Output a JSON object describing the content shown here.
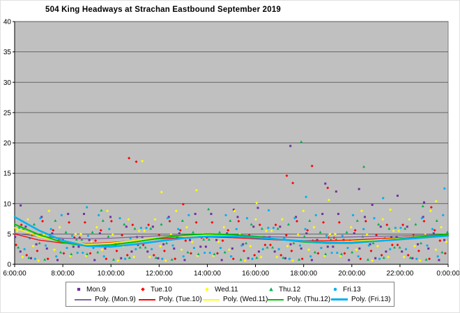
{
  "title": "504 King Headways at Strachan Eastbound September 2019",
  "chart_data": {
    "type": "scatter",
    "title": "504 King Headways at Strachan Eastbound September 2019",
    "xlabel": "",
    "ylabel": "",
    "grid": true,
    "legend_position": "bottom",
    "plot_bg": "#C0C0C0",
    "x_axis": {
      "min": 6,
      "max": 24,
      "tick_hours": [
        6,
        8,
        10,
        12,
        14,
        16,
        18,
        20,
        22,
        24
      ],
      "tick_labels": [
        "6:00:00",
        "8:00:00",
        "10:00:00",
        "12:00:00",
        "14:00:00",
        "16:00:00",
        "18:00:00",
        "20:00:00",
        "22:00:00",
        "0:00:00"
      ]
    },
    "y_axis": {
      "min": 0,
      "max": 40,
      "tick_step": 5,
      "tick_labels": [
        "0",
        "5",
        "10",
        "15",
        "20",
        "25",
        "30",
        "35",
        "40"
      ]
    },
    "series": [
      {
        "name": "Mon.9",
        "color": "#7030A0",
        "marker": "square",
        "x_start": 6.02,
        "x_step": 0.22,
        "values": [
          4.5,
          2.1,
          6.2,
          1.0,
          3.3,
          7.8,
          2.6,
          5.1,
          0.7,
          4.0,
          8.3,
          2.9,
          2.9,
          8.3,
          4.0,
          0.7,
          5.1,
          2.6,
          7.8,
          3.3,
          1.0,
          6.2,
          2.1,
          4.5,
          4.5,
          2.1,
          6.2,
          1.0,
          3.3,
          7.8,
          2.6,
          5.1,
          0.7,
          4.0,
          8.3,
          2.9,
          2.9,
          8.3,
          4.0,
          0.7,
          5.1,
          2.6,
          7.8,
          3.3,
          1.0,
          6.2,
          2.1,
          4.5,
          4.5,
          2.1,
          6.2,
          1.0,
          3.3,
          7.8,
          2.6,
          5.1,
          0.7,
          4.0,
          8.3,
          2.9,
          2.9,
          8.3,
          4.0,
          0.7,
          5.1,
          2.6,
          7.8,
          3.3,
          1.0,
          6.2,
          2.1,
          4.5,
          4.5,
          2.1,
          6.2,
          1.0,
          3.3,
          7.8,
          2.6,
          5.1,
          0.7,
          4.0
        ],
        "outliers": [
          [
            6.25,
            9.7
          ],
          [
            15.1,
            9.0
          ],
          [
            16.1,
            9.3
          ],
          [
            17.45,
            19.5
          ],
          [
            18.9,
            13.3
          ],
          [
            19.35,
            12.0
          ],
          [
            20.3,
            12.4
          ],
          [
            20.85,
            9.8
          ],
          [
            21.9,
            11.3
          ],
          [
            23.0,
            10.2
          ]
        ]
      },
      {
        "name": "Tue.10",
        "color": "#FF0000",
        "marker": "diamond",
        "x_start": 6.06,
        "x_step": 0.22,
        "values": [
          3.2,
          6.5,
          1.5,
          4.8,
          2.2,
          7.1,
          0.9,
          5.6,
          3.9,
          1.8,
          6.9,
          4.4,
          4.4,
          6.9,
          1.8,
          3.9,
          5.6,
          0.9,
          7.1,
          2.2,
          4.8,
          1.5,
          6.5,
          3.2,
          3.2,
          6.5,
          1.5,
          4.8,
          2.2,
          7.1,
          0.9,
          5.6,
          3.9,
          1.8,
          6.9,
          4.4,
          4.4,
          6.9,
          1.8,
          3.9,
          5.6,
          0.9,
          7.1,
          2.2,
          4.8,
          1.5,
          6.5,
          3.2,
          3.2,
          6.5,
          1.5,
          4.8,
          2.2,
          7.1,
          0.9,
          5.6,
          3.9,
          1.8,
          6.9,
          4.4,
          4.4,
          6.9,
          1.8,
          3.9,
          5.6,
          0.9,
          7.1,
          2.2,
          4.8,
          1.5,
          6.5,
          3.2,
          3.2,
          6.5,
          1.5,
          4.8,
          2.2,
          7.1,
          0.9,
          5.6,
          3.9,
          1.8
        ],
        "outliers": [
          [
            10.75,
            17.5
          ],
          [
            11.05,
            16.9
          ],
          [
            13.0,
            9.9
          ],
          [
            17.3,
            14.6
          ],
          [
            17.55,
            13.4
          ],
          [
            18.35,
            16.2
          ],
          [
            19.0,
            12.6
          ],
          [
            23.3,
            9.4
          ]
        ]
      },
      {
        "name": "Wed.11",
        "color": "#FFFF00",
        "marker": "diamond",
        "x_start": 6.11,
        "x_step": 0.22,
        "values": [
          5.5,
          1.2,
          7.4,
          3.0,
          0.6,
          4.9,
          8.8,
          2.4,
          6.1,
          3.7,
          1.4,
          5.0,
          5.0,
          1.4,
          3.7,
          6.1,
          2.4,
          8.8,
          4.9,
          0.6,
          3.0,
          7.4,
          1.2,
          5.5,
          5.5,
          1.2,
          7.4,
          3.0,
          0.6,
          4.9,
          8.8,
          2.4,
          6.1,
          3.7,
          1.4,
          5.0,
          5.0,
          1.4,
          3.7,
          6.1,
          2.4,
          8.8,
          4.9,
          0.6,
          3.0,
          7.4,
          1.2,
          5.5,
          5.5,
          1.2,
          7.4,
          3.0,
          0.6,
          4.9,
          8.8,
          2.4,
          6.1,
          3.7,
          1.4,
          5.0,
          5.0,
          1.4,
          3.7,
          6.1,
          2.4,
          8.8,
          4.9,
          0.6,
          3.0,
          7.4,
          1.2,
          5.5,
          5.5,
          1.2,
          7.4,
          3.0,
          0.6,
          4.9,
          8.8,
          2.4,
          6.1,
          3.7
        ],
        "outliers": [
          [
            11.3,
            17.0
          ],
          [
            12.1,
            11.9
          ],
          [
            13.55,
            12.2
          ],
          [
            16.05,
            10.1
          ],
          [
            19.05,
            10.6
          ],
          [
            21.6,
            9.0
          ],
          [
            23.5,
            10.4
          ]
        ]
      },
      {
        "name": "Thu.12",
        "color": "#00B050",
        "marker": "triangle",
        "x_start": 6.15,
        "x_step": 0.22,
        "values": [
          2.8,
          5.9,
          1.1,
          6.6,
          3.5,
          0.8,
          4.6,
          7.2,
          2.0,
          5.3,
          1.7,
          4.1,
          4.1,
          1.7,
          5.3,
          2.0,
          7.2,
          4.6,
          0.8,
          3.5,
          6.6,
          1.1,
          5.9,
          2.8,
          2.8,
          5.9,
          1.1,
          6.6,
          3.5,
          0.8,
          4.6,
          7.2,
          2.0,
          5.3,
          1.7,
          4.1,
          4.1,
          1.7,
          5.3,
          2.0,
          7.2,
          4.6,
          0.8,
          3.5,
          6.6,
          1.1,
          5.9,
          2.8,
          2.8,
          5.9,
          1.1,
          6.6,
          3.5,
          0.8,
          4.6,
          7.2,
          2.0,
          5.3,
          1.7,
          4.1,
          4.1,
          1.7,
          5.3,
          2.0,
          7.2,
          4.6,
          0.8,
          3.5,
          6.6,
          1.1,
          5.9,
          2.8,
          2.8,
          5.9,
          1.1,
          6.6,
          3.5,
          0.8,
          4.6,
          7.2,
          2.0,
          5.3
        ],
        "outliers": [
          [
            9.6,
            8.9
          ],
          [
            14.05,
            9.1
          ],
          [
            17.9,
            20.2
          ],
          [
            20.5,
            16.1
          ],
          [
            22.95,
            9.6
          ]
        ]
      },
      {
        "name": "Fri.13",
        "color": "#00B0F0",
        "marker": "dot",
        "x_start": 6.19,
        "x_step": 0.22,
        "values": [
          6.0,
          2.5,
          4.3,
          0.9,
          7.6,
          3.1,
          5.8,
          1.3,
          8.1,
          2.7,
          4.7,
          1.9,
          1.9,
          4.7,
          2.7,
          8.1,
          1.3,
          5.8,
          3.1,
          7.6,
          0.9,
          4.3,
          2.5,
          6.0,
          6.0,
          2.5,
          4.3,
          0.9,
          7.6,
          3.1,
          5.8,
          1.3,
          8.1,
          2.7,
          4.7,
          1.9,
          1.9,
          4.7,
          2.7,
          8.1,
          1.3,
          5.8,
          3.1,
          7.6,
          0.9,
          4.3,
          2.5,
          6.0,
          6.0,
          2.5,
          4.3,
          0.9,
          7.6,
          3.1,
          5.8,
          1.3,
          8.1,
          2.7,
          4.7,
          1.9,
          1.9,
          4.7,
          2.7,
          8.1,
          1.3,
          5.8,
          3.1,
          7.6,
          0.9,
          4.3,
          2.5,
          6.0,
          6.0,
          2.5,
          4.3,
          0.9,
          7.6,
          3.1,
          5.8,
          1.3,
          8.1,
          2.7
        ],
        "outliers": [
          [
            9.0,
            9.4
          ],
          [
            16.55,
            8.9
          ],
          [
            18.1,
            11.1
          ],
          [
            21.3,
            10.9
          ],
          [
            23.85,
            12.5
          ]
        ]
      }
    ],
    "trendlines": [
      {
        "name": "Poly. (Mon.9)",
        "color": "#8064A2",
        "width": 1.3,
        "x_start": 6,
        "x_step": 1,
        "y": [
          5.1,
          4.6,
          4.3,
          4.2,
          4.3,
          4.5,
          4.7,
          4.8,
          4.8,
          4.7,
          4.6,
          4.5,
          4.4,
          4.4,
          4.5,
          4.6,
          4.7,
          4.8,
          4.9
        ]
      },
      {
        "name": "Poly. (Tue.10)",
        "color": "#FF0000",
        "width": 1.3,
        "x_start": 6,
        "x_step": 1,
        "y": [
          5.0,
          4.0,
          3.5,
          3.4,
          3.6,
          3.9,
          4.2,
          4.4,
          4.5,
          4.4,
          4.2,
          4.0,
          3.9,
          3.9,
          4.0,
          4.2,
          4.4,
          4.6,
          4.8
        ]
      },
      {
        "name": "Poly. (Wed.11)",
        "color": "#FFFF00",
        "width": 1.5,
        "x_start": 6,
        "x_step": 1,
        "y": [
          6.0,
          4.6,
          3.7,
          3.3,
          3.5,
          3.9,
          4.4,
          4.7,
          4.8,
          4.7,
          4.4,
          4.1,
          3.8,
          3.7,
          3.8,
          4.0,
          4.3,
          4.6,
          5.0
        ]
      },
      {
        "name": "Poly. (Thu.12)",
        "color": "#00C000",
        "width": 2,
        "x_start": 6,
        "x_step": 1,
        "y": [
          6.6,
          4.9,
          3.6,
          3.0,
          3.2,
          3.7,
          4.3,
          4.8,
          5.0,
          4.9,
          4.6,
          4.1,
          3.7,
          3.5,
          3.5,
          3.8,
          4.2,
          4.6,
          5.0
        ]
      },
      {
        "name": "Poly. (Fri.13)",
        "color": "#00B0F0",
        "width": 2.5,
        "x_start": 6,
        "x_step": 1,
        "y": [
          7.8,
          5.6,
          3.9,
          3.0,
          2.9,
          3.3,
          3.8,
          4.3,
          4.6,
          4.6,
          4.4,
          4.1,
          3.8,
          3.6,
          3.6,
          3.8,
          4.1,
          4.4,
          4.7
        ]
      }
    ]
  }
}
